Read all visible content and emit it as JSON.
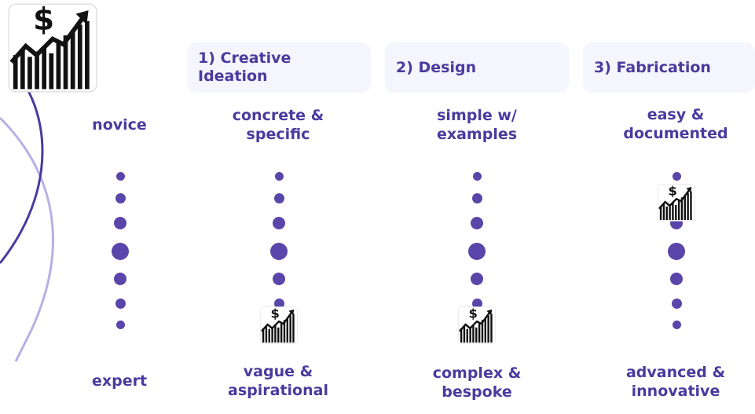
{
  "colors": {
    "accent": "#5a45aa",
    "text": "#4b3a9e",
    "header_bg": "#f4f5fd",
    "curve_dark": "#4b3a9e",
    "curve_light": "#b7b0e4"
  },
  "icon": "stock-chart-dollar-icon",
  "scale": {
    "top_label": "novice",
    "bottom_label": "expert",
    "levels": 7
  },
  "stages": [
    {
      "title": "1) Creative Ideation",
      "top_label": "concrete & specific",
      "bottom_label": "vague & aspirational",
      "marker_level": 7
    },
    {
      "title": "2) Design",
      "top_label": "simple w/ examples",
      "bottom_label": "complex & bespoke",
      "marker_level": 7
    },
    {
      "title": "3) Fabrication",
      "top_label": "easy & documented",
      "bottom_label": "advanced & innovative",
      "marker_level": 2
    }
  ]
}
